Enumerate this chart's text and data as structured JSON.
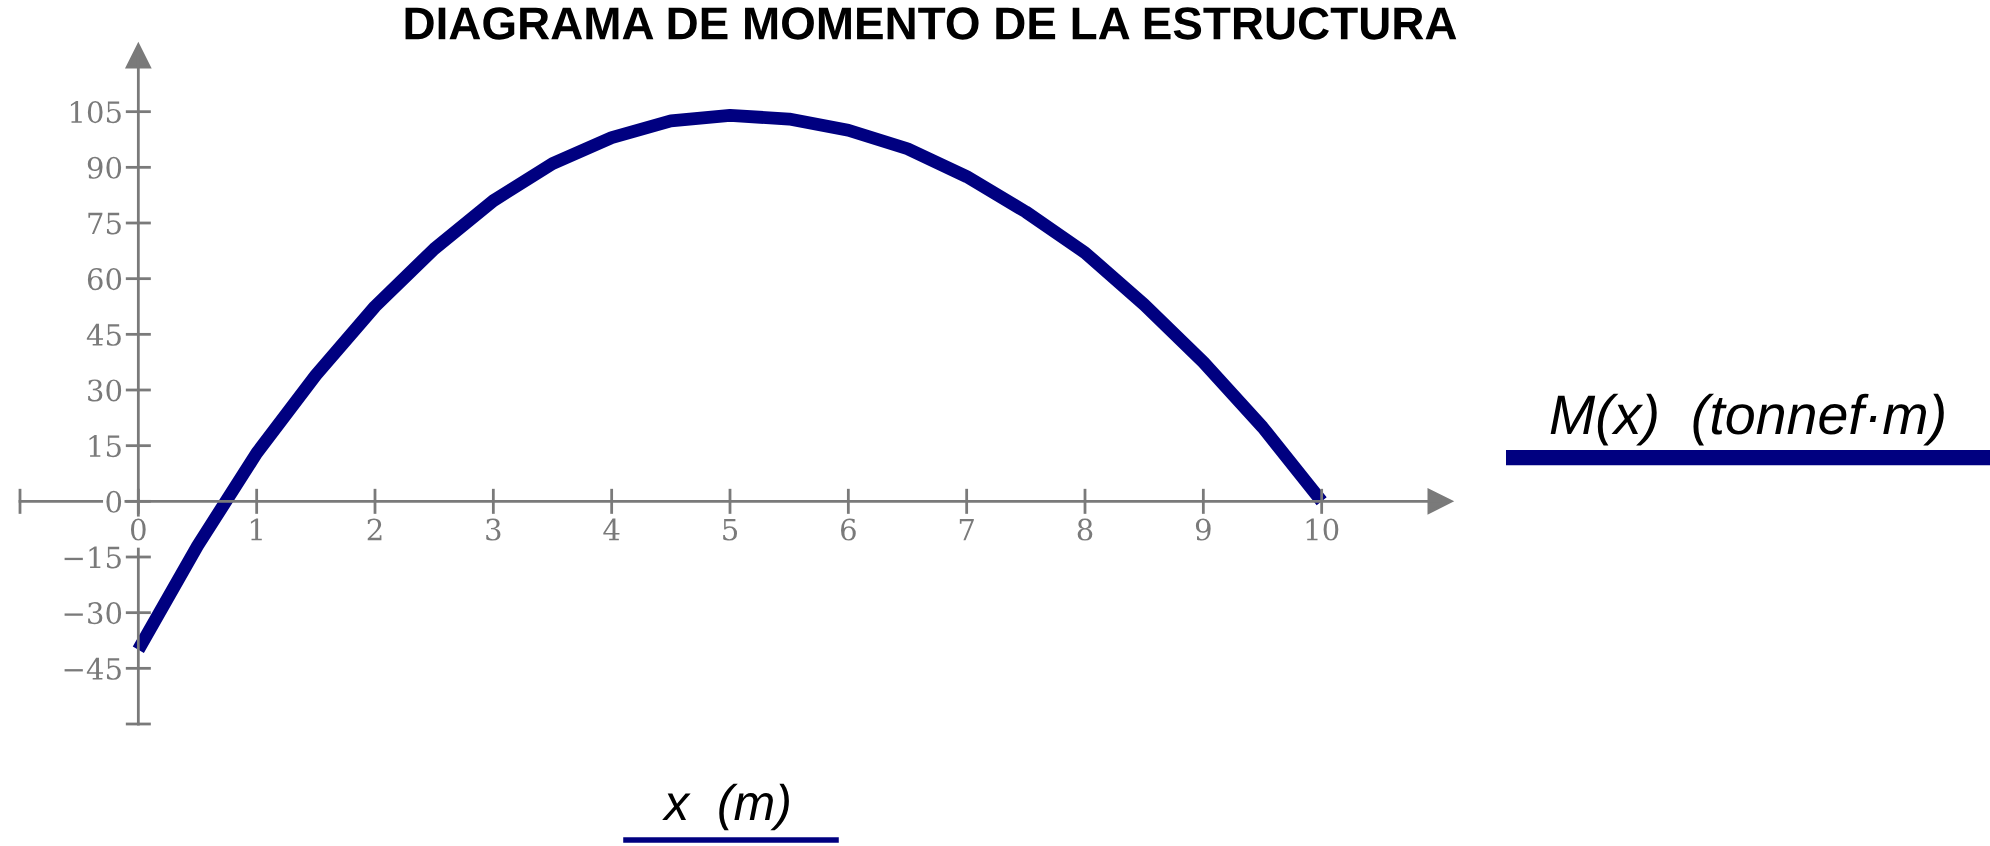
{
  "chart_data": {
    "type": "line",
    "title": "DIAGRAMA DE MOMENTO DE LA ESTRUCTURA",
    "xlabel": "x  (m)",
    "x": [
      0,
      0.5,
      1,
      1.5,
      2,
      2.5,
      3,
      3.5,
      4,
      4.5,
      5,
      5.5,
      6,
      6.5,
      7,
      7.5,
      8,
      8.5,
      9,
      9.5,
      10
    ],
    "series": [
      {
        "name": "M(x)  (tonnef·m)",
        "color": "#000080",
        "values": [
          -40,
          -12,
          13,
          34,
          52.5,
          68,
          81,
          91,
          98,
          102.5,
          104,
          103,
          100,
          95,
          87.5,
          78,
          67,
          53,
          37.5,
          20,
          0
        ]
      }
    ],
    "xlim": [
      -1,
      11
    ],
    "ylim": [
      -60,
      120
    ],
    "xticks": [
      {
        "value": -1,
        "label": null
      },
      0,
      1,
      2,
      3,
      4,
      5,
      6,
      7,
      8,
      9,
      10
    ],
    "yticks": [
      {
        "value": -60,
        "label": null
      },
      -45,
      -30,
      -15,
      0,
      15,
      30,
      45,
      60,
      75,
      90,
      105
    ],
    "legend": "right"
  }
}
